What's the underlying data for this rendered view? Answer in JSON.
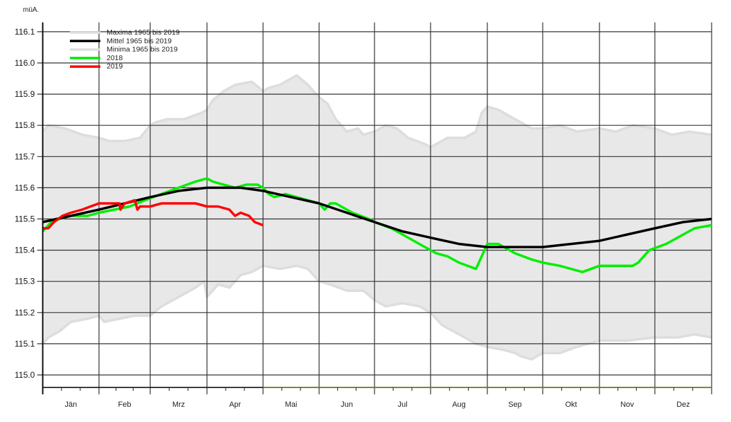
{
  "chart_data": {
    "type": "line",
    "unit_label": "müA.",
    "title": "",
    "xlabel": "",
    "ylabel": "müA.",
    "ylim": [
      114.96,
      116.13
    ],
    "yticks": [
      "115.0",
      "115.1",
      "115.2",
      "115.3",
      "115.4",
      "115.5",
      "115.6",
      "115.7",
      "115.8",
      "115.9",
      "116.0",
      "116.1"
    ],
    "ytick_values": [
      115.0,
      115.1,
      115.2,
      115.3,
      115.4,
      115.5,
      115.6,
      115.7,
      115.8,
      115.9,
      116.0,
      116.1
    ],
    "categories": [
      "Jän",
      "Feb",
      "Mrz",
      "Apr",
      "Mai",
      "Jun",
      "Jul",
      "Aug",
      "Sep",
      "Okt",
      "Nov",
      "Dez"
    ],
    "x_unit": "month (0 = 1 Jan, 12 = 31 Dec)",
    "grid": true,
    "legend_position": "top-left",
    "legend": [
      {
        "label": "Maxima 1965 bis 2019",
        "color": "#dddddd"
      },
      {
        "label": "Mittel 1965 bis 2019",
        "color": "#000000"
      },
      {
        "label": "Minima 1965 bis 2019",
        "color": "#dddddd"
      },
      {
        "label": "2018",
        "color": "#00ee00"
      },
      {
        "label": "2019",
        "color": "#ff0000"
      }
    ],
    "series": [
      {
        "name": "Maxima 1965 bis 2019",
        "color": "#dddddd",
        "x": [
          0,
          0.1,
          0.4,
          0.7,
          1.0,
          1.2,
          1.5,
          1.8,
          2.0,
          2.1,
          2.3,
          2.6,
          2.9,
          3.0,
          3.1,
          3.3,
          3.5,
          3.8,
          4.0,
          4.1,
          4.3,
          4.5,
          4.6,
          4.8,
          5.0,
          5.15,
          5.3,
          5.5,
          5.7,
          5.8,
          6.0,
          6.2,
          6.4,
          6.6,
          6.9,
          7.0,
          7.3,
          7.6,
          7.8,
          7.9,
          8.0,
          8.2,
          8.5,
          8.8,
          9.0,
          9.3,
          9.6,
          10.0,
          10.3,
          10.6,
          11.0,
          11.3,
          11.6,
          12.0
        ],
        "values": [
          115.78,
          115.8,
          115.79,
          115.77,
          115.76,
          115.75,
          115.75,
          115.76,
          115.8,
          115.81,
          115.82,
          115.82,
          115.84,
          115.85,
          115.88,
          115.91,
          115.93,
          115.94,
          115.91,
          115.92,
          115.93,
          115.95,
          115.96,
          115.93,
          115.89,
          115.87,
          115.82,
          115.78,
          115.79,
          115.77,
          115.78,
          115.8,
          115.79,
          115.76,
          115.74,
          115.73,
          115.76,
          115.76,
          115.78,
          115.84,
          115.86,
          115.85,
          115.82,
          115.79,
          115.79,
          115.8,
          115.78,
          115.79,
          115.78,
          115.8,
          115.79,
          115.77,
          115.78,
          115.77
        ]
      },
      {
        "name": "Mittel 1965 bis 2019",
        "color": "#000000",
        "x": [
          0,
          0.5,
          1.0,
          1.5,
          2.0,
          2.5,
          3.0,
          3.3,
          3.6,
          4.0,
          4.5,
          5.0,
          5.5,
          6.0,
          6.5,
          7.0,
          7.5,
          8.0,
          8.5,
          9.0,
          9.5,
          10.0,
          10.5,
          11.0,
          11.5,
          12.0
        ],
        "values": [
          115.49,
          115.51,
          115.53,
          115.55,
          115.57,
          115.59,
          115.6,
          115.6,
          115.6,
          115.59,
          115.57,
          115.55,
          115.52,
          115.49,
          115.46,
          115.44,
          115.42,
          115.41,
          115.41,
          115.41,
          115.42,
          115.43,
          115.45,
          115.47,
          115.49,
          115.5
        ]
      },
      {
        "name": "Minima 1965 bis 2019",
        "color": "#dddddd",
        "x": [
          0,
          0.1,
          0.3,
          0.5,
          0.8,
          1.0,
          1.1,
          1.4,
          1.7,
          2.0,
          2.2,
          2.5,
          2.8,
          2.95,
          3.0,
          3.2,
          3.4,
          3.6,
          3.8,
          4.0,
          4.3,
          4.6,
          4.8,
          5.0,
          5.2,
          5.5,
          5.8,
          6.0,
          6.2,
          6.5,
          6.8,
          7.0,
          7.2,
          7.5,
          7.8,
          8.0,
          8.3,
          8.5,
          8.6,
          8.8,
          9.0,
          9.3,
          9.6,
          10.0,
          10.5,
          11.0,
          11.4,
          11.7,
          12.0
        ],
        "values": [
          115.1,
          115.12,
          115.14,
          115.17,
          115.18,
          115.19,
          115.17,
          115.18,
          115.19,
          115.19,
          115.22,
          115.25,
          115.28,
          115.3,
          115.25,
          115.29,
          115.28,
          115.32,
          115.33,
          115.35,
          115.34,
          115.35,
          115.34,
          115.3,
          115.29,
          115.27,
          115.27,
          115.24,
          115.22,
          115.23,
          115.22,
          115.2,
          115.16,
          115.13,
          115.1,
          115.09,
          115.08,
          115.07,
          115.06,
          115.05,
          115.07,
          115.07,
          115.09,
          115.11,
          115.11,
          115.12,
          115.12,
          115.13,
          115.12
        ]
      },
      {
        "name": "2018",
        "color": "#00ee00",
        "x": [
          0,
          0.15,
          0.3,
          0.5,
          0.8,
          1.0,
          1.3,
          1.6,
          1.9,
          2.2,
          2.5,
          2.8,
          3.0,
          3.1,
          3.3,
          3.5,
          3.7,
          3.9,
          4.0,
          4.1,
          4.2,
          4.4,
          4.6,
          4.8,
          5.0,
          5.1,
          5.2,
          5.3,
          5.6,
          5.9,
          6.0,
          6.3,
          6.5,
          6.7,
          6.9,
          7.1,
          7.3,
          7.5,
          7.8,
          8.0,
          8.2,
          8.3,
          8.5,
          8.8,
          9.0,
          9.3,
          9.5,
          9.7,
          10.0,
          10.3,
          10.6,
          10.7,
          10.9,
          11.2,
          11.5,
          11.7,
          12.0
        ],
        "values": [
          115.46,
          115.49,
          115.5,
          115.51,
          115.51,
          115.52,
          115.53,
          115.54,
          115.56,
          115.58,
          115.6,
          115.62,
          115.63,
          115.62,
          115.61,
          115.6,
          115.61,
          115.61,
          115.6,
          115.58,
          115.57,
          115.58,
          115.57,
          115.56,
          115.55,
          115.53,
          115.55,
          115.55,
          115.52,
          115.5,
          115.49,
          115.47,
          115.45,
          115.43,
          115.41,
          115.39,
          115.38,
          115.36,
          115.34,
          115.42,
          115.42,
          115.41,
          115.39,
          115.37,
          115.36,
          115.35,
          115.34,
          115.33,
          115.35,
          115.35,
          115.35,
          115.36,
          115.4,
          115.42,
          115.45,
          115.47,
          115.48
        ]
      },
      {
        "name": "2019",
        "color": "#ff0000",
        "x": [
          0,
          0.1,
          0.2,
          0.35,
          0.5,
          0.7,
          1.0,
          1.2,
          1.4,
          1.42,
          1.5,
          1.7,
          1.75,
          1.8,
          2.0,
          2.2,
          2.4,
          2.6,
          2.8,
          3.0,
          3.2,
          3.4,
          3.5,
          3.6,
          3.75,
          3.85,
          4.0
        ],
        "values": [
          115.47,
          115.47,
          115.49,
          115.51,
          115.52,
          115.53,
          115.55,
          115.55,
          115.55,
          115.53,
          115.55,
          115.56,
          115.53,
          115.54,
          115.54,
          115.55,
          115.55,
          115.55,
          115.55,
          115.54,
          115.54,
          115.53,
          115.51,
          115.52,
          115.51,
          115.49,
          115.48
        ]
      }
    ]
  }
}
